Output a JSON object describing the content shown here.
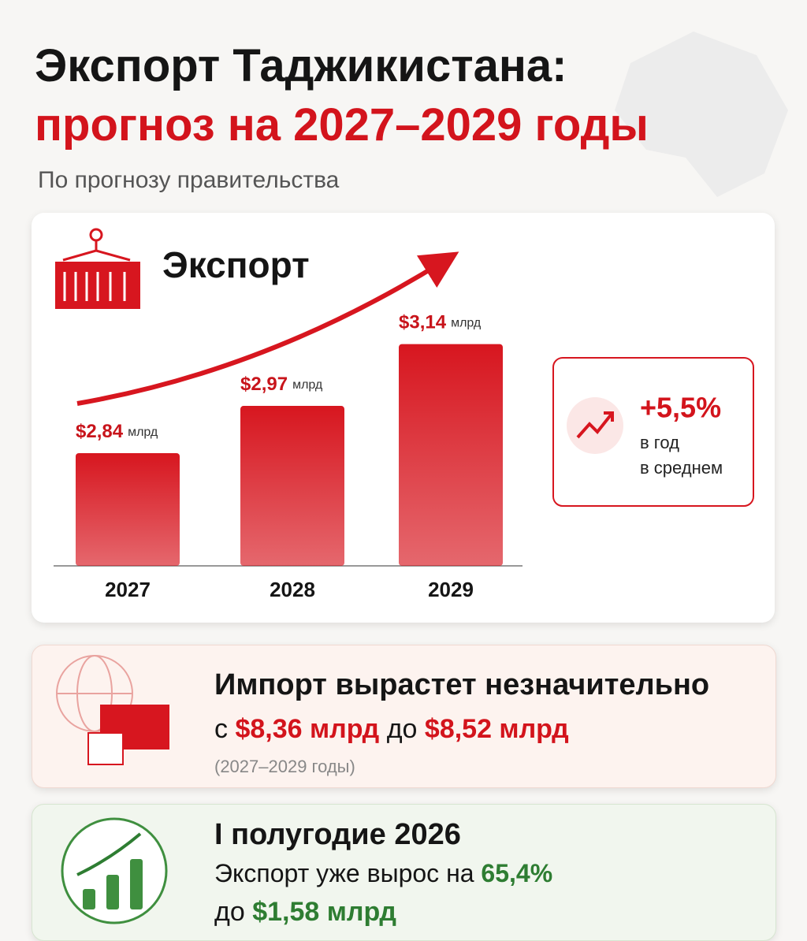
{
  "header": {
    "title_line1": "Экспорт Таджикистана:",
    "title_line2": "прогноз на 2027–2029 годы",
    "subtitle": "По прогнозу правительства"
  },
  "chart_data": {
    "type": "bar",
    "title": "Экспорт",
    "categories": [
      "2027",
      "2028",
      "2029"
    ],
    "values": [
      2.84,
      2.97,
      3.14
    ],
    "value_labels": [
      "$2,84",
      "$2,97",
      "$3,14"
    ],
    "value_unit": "млрд",
    "color": "#d7161f",
    "ylim": [
      2.53,
      3.15
    ]
  },
  "growth": {
    "value": "+5,5%",
    "line1": "в год",
    "line2": "в среднем"
  },
  "import": {
    "title": "Импорт вырастет незначительно",
    "from_prefix": "с",
    "from_value": "$8,36 млрд",
    "to_prefix": "до",
    "to_value": "$8,52 млрд",
    "period": "(2027–2029 годы)"
  },
  "half_year": {
    "title": "I полугодие 2026",
    "text": "Экспорт уже вырос на",
    "growth": "65,4%",
    "to_prefix": "до",
    "to_value": "$1,58 млрд"
  }
}
